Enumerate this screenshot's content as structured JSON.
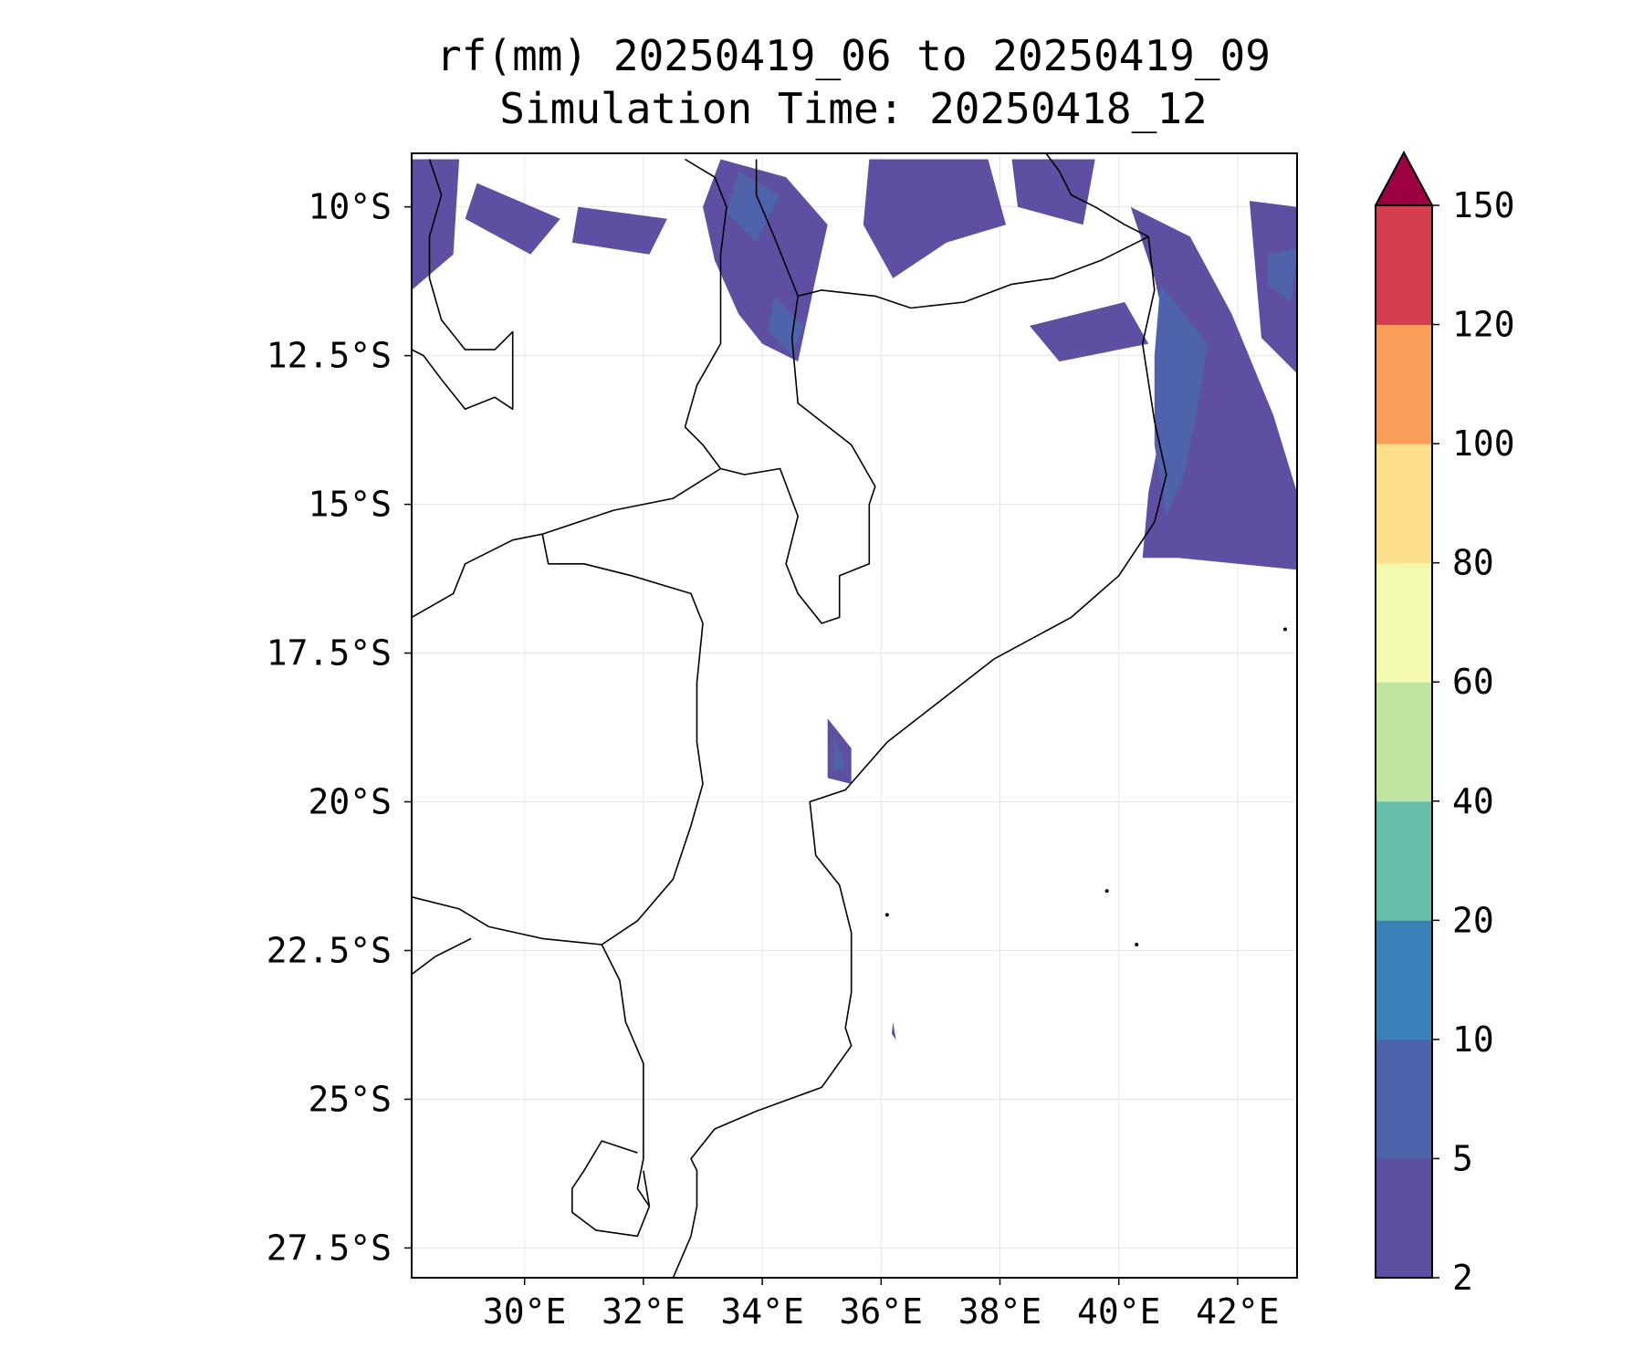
{
  "title": {
    "line1": "rf(mm) 20250419_06 to 20250419_09",
    "line2": "Simulation Time: 20250418_12"
  },
  "chart_data": {
    "type": "contourf-map",
    "variable": "rf",
    "units": "mm",
    "valid_period": "20250419_06 to 20250419_09",
    "simulation_time": "20250418_12",
    "xlim": [
      28.1,
      43.0
    ],
    "ylim": [
      -28.0,
      -9.1
    ],
    "x_ticks": [
      30,
      32,
      34,
      36,
      38,
      40,
      42
    ],
    "x_tick_labels": [
      "30°E",
      "32°E",
      "34°E",
      "36°E",
      "38°E",
      "40°E",
      "42°E"
    ],
    "y_ticks": [
      -10,
      -12.5,
      -15,
      -17.5,
      -20,
      -22.5,
      -25,
      -27.5
    ],
    "y_tick_labels": [
      "10°S",
      "12.5°S",
      "15°S",
      "17.5°S",
      "20°S",
      "22.5°S",
      "25°S",
      "27.5°S"
    ],
    "grid": true,
    "colorbar": {
      "levels": [
        2,
        5,
        10,
        20,
        40,
        60,
        80,
        100,
        120,
        150
      ],
      "level_labels": [
        "2",
        "5",
        "10",
        "20",
        "40",
        "60",
        "80",
        "100",
        "120",
        "150"
      ],
      "colors": [
        "#5e4fa2",
        "#4e63ab",
        "#3a80b9",
        "#65bfaa",
        "#bfe5a0",
        "#f3f9ae",
        "#fdde8b",
        "#f99d59",
        "#d53e4f"
      ],
      "extend": "max",
      "extend_color": "#9e0142"
    },
    "rain_regions_5mm_plus": [
      [
        [
          40.7,
          -11.3
        ],
        [
          41.5,
          -12.3
        ],
        [
          41.3,
          -13.5
        ],
        [
          41.1,
          -14.5
        ],
        [
          40.8,
          -15.2
        ],
        [
          40.6,
          -14.0
        ],
        [
          40.6,
          -12.5
        ]
      ],
      [
        [
          34.2,
          -11.5
        ],
        [
          34.7,
          -12.0
        ],
        [
          34.5,
          -12.5
        ],
        [
          34.1,
          -12.1
        ]
      ],
      [
        [
          33.6,
          -9.4
        ],
        [
          34.3,
          -9.8
        ],
        [
          33.9,
          -10.6
        ],
        [
          33.4,
          -10.1
        ]
      ],
      [
        [
          42.5,
          -10.8
        ],
        [
          43.0,
          -10.7
        ],
        [
          42.9,
          -11.6
        ],
        [
          42.5,
          -11.3
        ]
      ],
      [
        [
          35.2,
          -18.9
        ],
        [
          35.4,
          -19.4
        ],
        [
          35.2,
          -19.5
        ]
      ]
    ],
    "rain_regions_2mm_plus": [
      [
        [
          40.2,
          -10.0
        ],
        [
          41.2,
          -10.5
        ],
        [
          41.9,
          -11.8
        ],
        [
          42.6,
          -13.5
        ],
        [
          43.0,
          -14.8
        ],
        [
          43.0,
          -16.1
        ],
        [
          42.0,
          -16.0
        ],
        [
          41.0,
          -15.9
        ],
        [
          40.4,
          -15.9
        ],
        [
          40.5,
          -14.8
        ],
        [
          40.7,
          -13.8
        ],
        [
          40.9,
          -12.5
        ],
        [
          40.6,
          -11.2
        ]
      ],
      [
        [
          33.3,
          -9.2
        ],
        [
          34.4,
          -9.5
        ],
        [
          35.1,
          -10.3
        ],
        [
          34.9,
          -11.2
        ],
        [
          34.6,
          -12.6
        ],
        [
          34.0,
          -12.3
        ],
        [
          33.6,
          -11.8
        ],
        [
          33.2,
          -10.9
        ],
        [
          33.0,
          -10.0
        ]
      ],
      [
        [
          35.8,
          -9.2
        ],
        [
          37.8,
          -9.2
        ],
        [
          38.1,
          -10.3
        ],
        [
          37.1,
          -10.6
        ],
        [
          36.2,
          -11.2
        ],
        [
          35.7,
          -10.3
        ]
      ],
      [
        [
          28.1,
          -9.2
        ],
        [
          28.9,
          -9.2
        ],
        [
          28.8,
          -10.8
        ],
        [
          28.1,
          -11.4
        ]
      ],
      [
        [
          29.2,
          -9.6
        ],
        [
          30.6,
          -10.2
        ],
        [
          30.1,
          -10.8
        ],
        [
          29.0,
          -10.2
        ]
      ],
      [
        [
          30.9,
          -10.0
        ],
        [
          32.4,
          -10.2
        ],
        [
          32.1,
          -10.8
        ],
        [
          30.8,
          -10.6
        ]
      ],
      [
        [
          38.2,
          -9.2
        ],
        [
          39.6,
          -9.2
        ],
        [
          39.4,
          -10.3
        ],
        [
          38.3,
          -10.0
        ]
      ],
      [
        [
          38.5,
          -12.0
        ],
        [
          40.1,
          -11.6
        ],
        [
          40.5,
          -12.3
        ],
        [
          39.0,
          -12.6
        ]
      ],
      [
        [
          42.2,
          -9.9
        ],
        [
          43.0,
          -10.0
        ],
        [
          43.0,
          -12.8
        ],
        [
          42.4,
          -12.2
        ]
      ],
      [
        [
          35.1,
          -18.6
        ],
        [
          35.5,
          -19.1
        ],
        [
          35.5,
          -19.7
        ],
        [
          35.1,
          -19.6
        ]
      ],
      [
        [
          36.2,
          -23.7
        ],
        [
          36.25,
          -24.0
        ],
        [
          36.18,
          -23.9
        ]
      ]
    ],
    "boundary_lines": [
      {
        "name": "mozambique-coast",
        "coords": [
          [
            40.5,
            -10.5
          ],
          [
            40.6,
            -11.4
          ],
          [
            40.4,
            -12.3
          ],
          [
            40.6,
            -13.6
          ],
          [
            40.8,
            -14.5
          ],
          [
            40.6,
            -15.3
          ],
          [
            40.0,
            -16.2
          ],
          [
            39.2,
            -16.9
          ],
          [
            37.9,
            -17.6
          ],
          [
            37.0,
            -18.3
          ],
          [
            36.1,
            -19.0
          ],
          [
            35.4,
            -19.8
          ],
          [
            34.8,
            -20.0
          ],
          [
            34.9,
            -20.9
          ],
          [
            35.3,
            -21.4
          ],
          [
            35.5,
            -22.2
          ],
          [
            35.5,
            -23.2
          ],
          [
            35.4,
            -23.8
          ],
          [
            35.5,
            -24.1
          ],
          [
            35.0,
            -24.8
          ],
          [
            33.9,
            -25.2
          ],
          [
            33.2,
            -25.5
          ],
          [
            32.8,
            -26.0
          ],
          [
            32.9,
            -26.2
          ],
          [
            32.9,
            -26.8
          ],
          [
            32.8,
            -27.3
          ],
          [
            32.5,
            -28.0
          ]
        ]
      },
      {
        "name": "tanzania-coast",
        "coords": [
          [
            38.7,
            -9.0
          ],
          [
            39.0,
            -9.4
          ],
          [
            39.2,
            -9.8
          ],
          [
            39.6,
            -10.0
          ],
          [
            40.1,
            -10.3
          ],
          [
            40.5,
            -10.5
          ]
        ]
      },
      {
        "name": "tanzania-mozambique-border",
        "coords": [
          [
            40.5,
            -10.5
          ],
          [
            39.7,
            -10.9
          ],
          [
            38.9,
            -11.2
          ],
          [
            38.2,
            -11.3
          ],
          [
            37.4,
            -11.6
          ],
          [
            36.5,
            -11.7
          ],
          [
            35.9,
            -11.5
          ],
          [
            35.0,
            -11.4
          ],
          [
            34.6,
            -11.5
          ]
        ]
      },
      {
        "name": "malawi-border",
        "coords": [
          [
            32.7,
            -9.2
          ],
          [
            33.2,
            -9.5
          ],
          [
            33.4,
            -10.0
          ],
          [
            33.3,
            -10.8
          ],
          [
            33.3,
            -11.6
          ],
          [
            33.3,
            -12.3
          ],
          [
            32.9,
            -13.0
          ],
          [
            32.7,
            -13.7
          ],
          [
            33.0,
            -14.0
          ],
          [
            33.3,
            -14.4
          ],
          [
            33.7,
            -14.5
          ],
          [
            34.3,
            -14.4
          ],
          [
            34.6,
            -15.2
          ],
          [
            34.4,
            -16.0
          ],
          [
            34.6,
            -16.5
          ],
          [
            35.0,
            -17.0
          ],
          [
            35.3,
            -16.9
          ],
          [
            35.3,
            -16.2
          ],
          [
            35.8,
            -16.0
          ],
          [
            35.8,
            -15.0
          ],
          [
            35.9,
            -14.7
          ],
          [
            35.5,
            -14.0
          ],
          [
            34.6,
            -13.3
          ],
          [
            34.5,
            -12.2
          ],
          [
            34.6,
            -11.5
          ],
          [
            34.2,
            -10.5
          ],
          [
            33.9,
            -9.8
          ],
          [
            33.9,
            -9.2
          ]
        ]
      },
      {
        "name": "zambia-mozambique-border",
        "coords": [
          [
            30.3,
            -15.5
          ],
          [
            31.5,
            -15.1
          ],
          [
            32.5,
            -14.9
          ],
          [
            33.3,
            -14.4
          ]
        ]
      },
      {
        "name": "zimbabwe-mozambique-border",
        "coords": [
          [
            30.3,
            -15.5
          ],
          [
            30.4,
            -16.0
          ],
          [
            31.0,
            -16.0
          ],
          [
            31.8,
            -16.2
          ],
          [
            32.8,
            -16.5
          ],
          [
            33.0,
            -17.0
          ],
          [
            32.9,
            -18.0
          ],
          [
            32.9,
            -19.0
          ],
          [
            33.0,
            -19.7
          ],
          [
            32.8,
            -20.4
          ],
          [
            32.5,
            -21.3
          ],
          [
            31.9,
            -22.0
          ],
          [
            31.3,
            -22.4
          ]
        ]
      },
      {
        "name": "south-africa-mozambique-border",
        "coords": [
          [
            31.3,
            -22.4
          ],
          [
            31.6,
            -23.0
          ],
          [
            31.7,
            -23.7
          ],
          [
            32.0,
            -24.4
          ],
          [
            32.0,
            -25.4
          ],
          [
            32.0,
            -26.0
          ],
          [
            31.9,
            -26.5
          ],
          [
            32.1,
            -26.8
          ]
        ]
      },
      {
        "name": "zambia-zimbabwe-border",
        "coords": [
          [
            28.1,
            -16.9
          ],
          [
            28.8,
            -16.5
          ],
          [
            29.0,
            -16.0
          ],
          [
            29.8,
            -15.6
          ],
          [
            30.3,
            -15.5
          ]
        ]
      },
      {
        "name": "zimbabwe-south-africa-border",
        "coords": [
          [
            28.1,
            -21.6
          ],
          [
            28.9,
            -21.8
          ],
          [
            29.4,
            -22.1
          ],
          [
            30.3,
            -22.3
          ],
          [
            31.3,
            -22.4
          ]
        ]
      },
      {
        "name": "botswana-south-africa-border",
        "coords": [
          [
            28.1,
            -22.9
          ],
          [
            28.5,
            -22.6
          ],
          [
            29.1,
            -22.3
          ]
        ]
      },
      {
        "name": "zambia-drc-border",
        "coords": [
          [
            28.4,
            -9.2
          ],
          [
            28.6,
            -9.8
          ],
          [
            28.4,
            -10.5
          ],
          [
            28.4,
            -11.2
          ],
          [
            28.6,
            -11.9
          ],
          [
            29.0,
            -12.4
          ],
          [
            29.5,
            -12.4
          ],
          [
            29.8,
            -12.1
          ],
          [
            29.8,
            -13.4
          ],
          [
            29.5,
            -13.2
          ],
          [
            29.0,
            -13.4
          ],
          [
            28.6,
            -12.9
          ],
          [
            28.3,
            -12.5
          ],
          [
            28.1,
            -12.4
          ]
        ]
      },
      {
        "name": "eswatini-border",
        "coords": [
          [
            31.9,
            -25.9
          ],
          [
            31.3,
            -25.7
          ],
          [
            31.0,
            -26.2
          ],
          [
            30.8,
            -26.5
          ],
          [
            30.8,
            -26.9
          ],
          [
            31.2,
            -27.2
          ],
          [
            31.9,
            -27.3
          ],
          [
            32.1,
            -26.8
          ],
          [
            32.0,
            -26.2
          ]
        ]
      }
    ],
    "islands": [
      [
        36.1,
        -21.9
      ],
      [
        40.3,
        -22.4
      ],
      [
        39.8,
        -21.5
      ],
      [
        42.8,
        -17.1
      ]
    ]
  }
}
